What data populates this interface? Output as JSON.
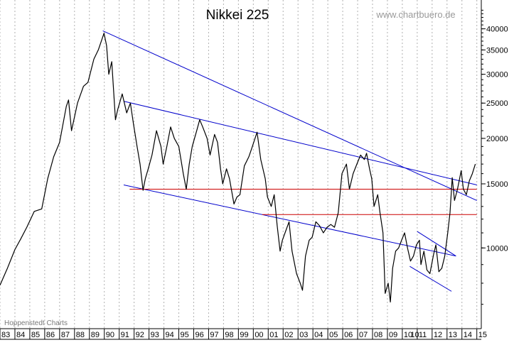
{
  "chart_data": {
    "type": "line",
    "title": "Nikkei 225",
    "watermark": "www.chartbuero.de",
    "source_note": "Hoppenstedt Charts",
    "y_scale": "log",
    "ylim": [
      6000,
      48000
    ],
    "y_ticks": [
      10000,
      15000,
      20000,
      25000,
      30000,
      35000,
      40000
    ],
    "y_tick_labels": [
      "10000",
      "15000",
      "20000",
      "25000",
      "30000",
      "35000",
      "40000"
    ],
    "xlim": [
      1983.0,
      2015.3
    ],
    "x_ticks": [
      1983,
      1984,
      1985,
      1986,
      1987,
      1988,
      1989,
      1990,
      1991,
      1992,
      1993,
      1994,
      1995,
      1996,
      1997,
      1998,
      1999,
      2000,
      2001,
      2002,
      2003,
      2004,
      2005,
      2006,
      2007,
      2008,
      2009,
      2010,
      2011,
      2012,
      2013,
      2014,
      2015
    ],
    "x_tick_labels": [
      "83",
      "84",
      "85",
      "86",
      "87",
      "88",
      "89",
      "90",
      "91",
      "92",
      "93",
      "94",
      "95",
      "96",
      "97",
      "98",
      "99",
      "00",
      "01",
      "02",
      "03",
      "04",
      "05",
      "06",
      "07",
      "08",
      "09",
      "10",
      "11",
      "12",
      "13",
      "14",
      "15"
    ],
    "x_tick_labels_extra": [
      {
        "x": 2010.5,
        "label": "10"
      }
    ],
    "grid": "vertical-dashed",
    "series": [
      {
        "color": "#000000",
        "points": [
          [
            1983.0,
            7900
          ],
          [
            1983.5,
            8800
          ],
          [
            1984.0,
            9900
          ],
          [
            1984.4,
            10600
          ],
          [
            1984.8,
            11400
          ],
          [
            1985.3,
            12600
          ],
          [
            1985.8,
            12800
          ],
          [
            1986.2,
            15500
          ],
          [
            1986.6,
            17800
          ],
          [
            1987.0,
            19500
          ],
          [
            1987.45,
            24500
          ],
          [
            1987.6,
            25500
          ],
          [
            1987.8,
            21000
          ],
          [
            1988.2,
            25000
          ],
          [
            1988.6,
            27800
          ],
          [
            1988.9,
            28500
          ],
          [
            1989.3,
            33000
          ],
          [
            1989.6,
            35000
          ],
          [
            1989.98,
            38900
          ],
          [
            1990.15,
            36000
          ],
          [
            1990.3,
            30000
          ],
          [
            1990.5,
            32500
          ],
          [
            1990.75,
            22500
          ],
          [
            1990.9,
            24000
          ],
          [
            1991.2,
            26500
          ],
          [
            1991.5,
            23500
          ],
          [
            1991.75,
            25000
          ],
          [
            1991.95,
            22000
          ],
          [
            1992.2,
            19000
          ],
          [
            1992.4,
            17000
          ],
          [
            1992.6,
            14400
          ],
          [
            1992.75,
            15500
          ],
          [
            1992.95,
            16500
          ],
          [
            1993.2,
            18000
          ],
          [
            1993.5,
            21000
          ],
          [
            1993.8,
            19000
          ],
          [
            1993.95,
            17000
          ],
          [
            1994.2,
            19000
          ],
          [
            1994.45,
            21500
          ],
          [
            1994.7,
            20000
          ],
          [
            1995.0,
            19000
          ],
          [
            1995.3,
            16000
          ],
          [
            1995.5,
            14500
          ],
          [
            1995.7,
            17000
          ],
          [
            1995.9,
            19000
          ],
          [
            1996.2,
            21000
          ],
          [
            1996.4,
            22500
          ],
          [
            1996.6,
            21500
          ],
          [
            1996.9,
            20000
          ],
          [
            1997.1,
            18000
          ],
          [
            1997.4,
            20500
          ],
          [
            1997.6,
            19500
          ],
          [
            1997.8,
            16500
          ],
          [
            1997.95,
            15000
          ],
          [
            1998.2,
            16500
          ],
          [
            1998.4,
            15500
          ],
          [
            1998.7,
            13200
          ],
          [
            1998.9,
            13800
          ],
          [
            1999.1,
            14000
          ],
          [
            1999.4,
            16800
          ],
          [
            1999.7,
            17800
          ],
          [
            1999.9,
            18800
          ],
          [
            2000.25,
            20800
          ],
          [
            2000.5,
            17500
          ],
          [
            2000.8,
            15500
          ],
          [
            2000.95,
            13800
          ],
          [
            2001.2,
            13000
          ],
          [
            2001.4,
            14000
          ],
          [
            2001.6,
            11500
          ],
          [
            2001.8,
            9800
          ],
          [
            2001.95,
            10500
          ],
          [
            2002.2,
            11200
          ],
          [
            2002.4,
            11800
          ],
          [
            2002.6,
            9800
          ],
          [
            2002.9,
            8500
          ],
          [
            2003.15,
            8000
          ],
          [
            2003.3,
            7650
          ],
          [
            2003.5,
            9500
          ],
          [
            2003.75,
            10500
          ],
          [
            2003.95,
            10700
          ],
          [
            2004.2,
            11800
          ],
          [
            2004.45,
            11500
          ],
          [
            2004.7,
            11000
          ],
          [
            2004.95,
            11400
          ],
          [
            2005.2,
            11600
          ],
          [
            2005.45,
            11400
          ],
          [
            2005.7,
            12500
          ],
          [
            2005.95,
            16000
          ],
          [
            2006.25,
            17000
          ],
          [
            2006.45,
            14500
          ],
          [
            2006.7,
            16000
          ],
          [
            2006.95,
            17000
          ],
          [
            2007.2,
            18000
          ],
          [
            2007.45,
            17500
          ],
          [
            2007.6,
            18200
          ],
          [
            2007.8,
            16500
          ],
          [
            2007.95,
            15500
          ],
          [
            2008.1,
            13000
          ],
          [
            2008.35,
            14000
          ],
          [
            2008.5,
            12500
          ],
          [
            2008.7,
            11000
          ],
          [
            2008.85,
            7500
          ],
          [
            2009.05,
            8000
          ],
          [
            2009.2,
            7100
          ],
          [
            2009.35,
            8800
          ],
          [
            2009.55,
            9800
          ],
          [
            2009.75,
            10000
          ],
          [
            2009.95,
            10500
          ],
          [
            2010.15,
            11000
          ],
          [
            2010.35,
            10000
          ],
          [
            2010.55,
            9200
          ],
          [
            2010.75,
            9500
          ],
          [
            2010.95,
            10200
          ],
          [
            2011.15,
            10500
          ],
          [
            2011.25,
            9000
          ],
          [
            2011.45,
            9800
          ],
          [
            2011.65,
            8700
          ],
          [
            2011.85,
            8500
          ],
          [
            2012.1,
            9600
          ],
          [
            2012.25,
            10200
          ],
          [
            2012.45,
            8600
          ],
          [
            2012.65,
            8800
          ],
          [
            2012.85,
            9500
          ],
          [
            2013.05,
            11000
          ],
          [
            2013.2,
            12500
          ],
          [
            2013.35,
            15600
          ],
          [
            2013.5,
            13500
          ],
          [
            2013.7,
            14500
          ],
          [
            2013.95,
            16300
          ],
          [
            2014.1,
            14500
          ],
          [
            2014.3,
            14000
          ],
          [
            2014.5,
            15300
          ],
          [
            2014.7,
            16000
          ],
          [
            2014.9,
            17000
          ]
        ]
      }
    ],
    "overlays": [
      {
        "kind": "trendline",
        "color": "#0000cc",
        "points": [
          [
            1989.9,
            39500
          ],
          [
            2015.0,
            13500
          ]
        ]
      },
      {
        "kind": "trendline",
        "color": "#0000cc",
        "points": [
          [
            1991.3,
            25300
          ],
          [
            2015.0,
            14900
          ]
        ]
      },
      {
        "kind": "trendline",
        "color": "#0000cc",
        "points": [
          [
            1991.3,
            14900
          ],
          [
            2013.6,
            9500
          ]
        ]
      },
      {
        "kind": "trendline",
        "color": "#0000cc",
        "points": [
          [
            2011.0,
            11100
          ],
          [
            2013.6,
            9500
          ]
        ]
      },
      {
        "kind": "trendline",
        "color": "#0000cc",
        "points": [
          [
            2010.5,
            8900
          ],
          [
            2013.3,
            7600
          ]
        ]
      },
      {
        "kind": "level",
        "color": "#cc0000",
        "points": [
          [
            1991.7,
            14500
          ],
          [
            2015.0,
            14500
          ]
        ]
      },
      {
        "kind": "level",
        "color": "#cc0000",
        "points": [
          [
            2000.6,
            12350
          ],
          [
            2015.0,
            12350
          ]
        ]
      }
    ]
  }
}
